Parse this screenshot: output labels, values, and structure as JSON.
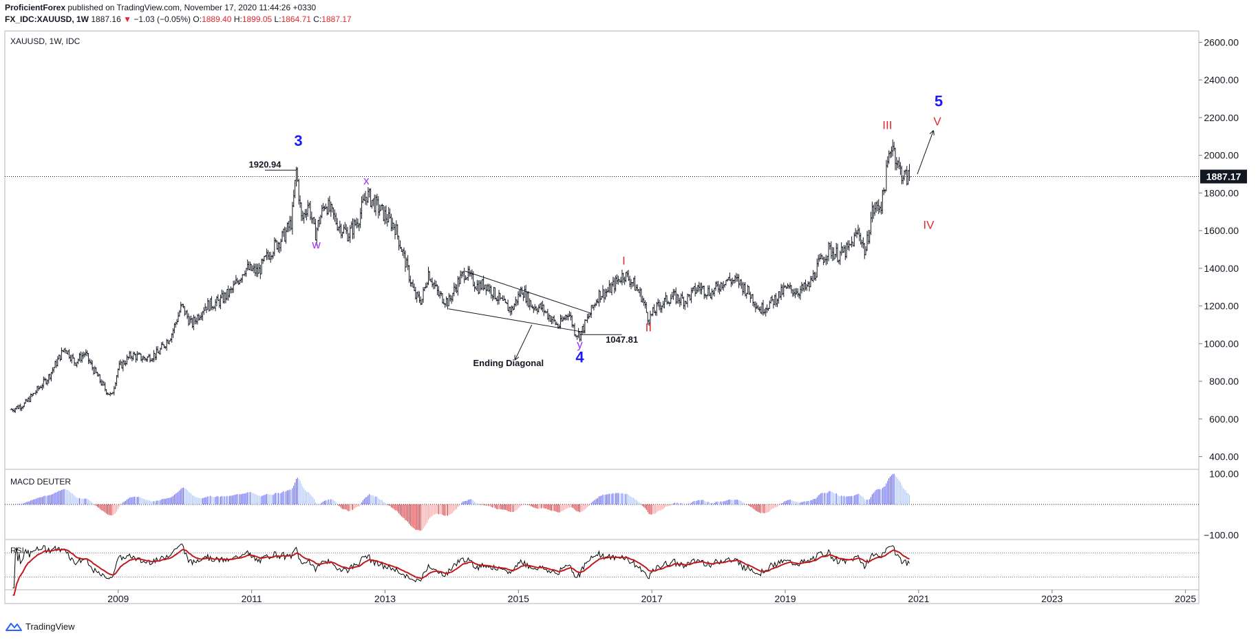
{
  "header": {
    "publisher": "ProficientForex",
    "published_text": "published on TradingView.com, November 17, 2020 11:44:26 +0330",
    "symbol": "FX_IDC:XAUUSD, 1W",
    "last_price": "1887.16",
    "change": "−1.03 (−0.05%)",
    "o_label": "O:",
    "o_value": "1889.40",
    "h_label": "H:",
    "h_value": "1899.05",
    "l_label": "L:",
    "l_value": "1864.71",
    "c_label": "C:",
    "c_value": "1887.17"
  },
  "footer": {
    "logo_icon": "tradingview-logo-icon",
    "brand": "TradingView"
  },
  "colors": {
    "wave_blue": "#1a1aff",
    "wave_red": "#e0282e",
    "wave_purple": "#9b30ff",
    "macd_pos": "#5b5bff",
    "macd_pos_light": "#a8c2ff",
    "macd_neg": "#e0282e",
    "macd_neg_light": "#ff9a9a",
    "rsi_line": "#000000",
    "rsi_ma": "#c0181e"
  },
  "chart_data": {
    "type": "line",
    "style": "ohlc-bars-weekly",
    "main_panel": {
      "label": "XAUUSD, 1W, IDC",
      "y_ticks": [
        "2600.00",
        "2400.00",
        "2200.00",
        "2000.00",
        "1800.00",
        "1600.00",
        "1400.00",
        "1200.00",
        "1000.00",
        "800.00",
        "600.00",
        "400.00"
      ],
      "ylim": [
        340,
        2660
      ],
      "current_price_label": "1887.17",
      "current_price": 1887.17,
      "price_path": [
        [
          2007.4,
          650
        ],
        [
          2007.6,
          680
        ],
        [
          2007.8,
          760
        ],
        [
          2007.95,
          820
        ],
        [
          2008.2,
          980
        ],
        [
          2008.35,
          900
        ],
        [
          2008.5,
          950
        ],
        [
          2008.6,
          880
        ],
        [
          2008.8,
          760
        ],
        [
          2008.9,
          720
        ],
        [
          2009.0,
          870
        ],
        [
          2009.2,
          940
        ],
        [
          2009.4,
          920
        ],
        [
          2009.6,
          950
        ],
        [
          2009.8,
          1050
        ],
        [
          2009.95,
          1200
        ],
        [
          2010.1,
          1100
        ],
        [
          2010.3,
          1200
        ],
        [
          2010.5,
          1220
        ],
        [
          2010.7,
          1280
        ],
        [
          2010.9,
          1400
        ],
        [
          2011.1,
          1380
        ],
        [
          2011.3,
          1500
        ],
        [
          2011.5,
          1580
        ],
        [
          2011.6,
          1650
        ],
        [
          2011.67,
          1920.94
        ],
        [
          2011.75,
          1650
        ],
        [
          2011.85,
          1750
        ],
        [
          2011.95,
          1580
        ],
        [
          2012.1,
          1750
        ],
        [
          2012.3,
          1630
        ],
        [
          2012.45,
          1580
        ],
        [
          2012.6,
          1660
        ],
        [
          2012.72,
          1795
        ],
        [
          2012.85,
          1740
        ],
        [
          2013.0,
          1680
        ],
        [
          2013.15,
          1620
        ],
        [
          2013.3,
          1440
        ],
        [
          2013.45,
          1250
        ],
        [
          2013.55,
          1230
        ],
        [
          2013.65,
          1380
        ],
        [
          2013.8,
          1260
        ],
        [
          2013.95,
          1220
        ],
        [
          2014.1,
          1330
        ],
        [
          2014.2,
          1380
        ],
        [
          2014.4,
          1300
        ],
        [
          2014.5,
          1320
        ],
        [
          2014.65,
          1260
        ],
        [
          2014.8,
          1200
        ],
        [
          2014.9,
          1180
        ],
        [
          2015.05,
          1290
        ],
        [
          2015.2,
          1200
        ],
        [
          2015.35,
          1190
        ],
        [
          2015.5,
          1130
        ],
        [
          2015.6,
          1090
        ],
        [
          2015.75,
          1170
        ],
        [
          2015.85,
          1060
        ],
        [
          2015.92,
          1047.81
        ],
        [
          2016.05,
          1140
        ],
        [
          2016.2,
          1260
        ],
        [
          2016.35,
          1280
        ],
        [
          2016.5,
          1340
        ],
        [
          2016.58,
          1370
        ],
        [
          2016.7,
          1330
        ],
        [
          2016.85,
          1250
        ],
        [
          2016.95,
          1130
        ],
        [
          2017.1,
          1200
        ],
        [
          2017.3,
          1250
        ],
        [
          2017.5,
          1230
        ],
        [
          2017.7,
          1300
        ],
        [
          2017.9,
          1270
        ],
        [
          2018.1,
          1340
        ],
        [
          2018.3,
          1330
        ],
        [
          2018.5,
          1250
        ],
        [
          2018.62,
          1180
        ],
        [
          2018.8,
          1220
        ],
        [
          2019.0,
          1290
        ],
        [
          2019.2,
          1280
        ],
        [
          2019.35,
          1300
        ],
        [
          2019.5,
          1420
        ],
        [
          2019.65,
          1500
        ],
        [
          2019.8,
          1470
        ],
        [
          2019.95,
          1500
        ],
        [
          2020.1,
          1600
        ],
        [
          2020.2,
          1480
        ],
        [
          2020.3,
          1700
        ],
        [
          2020.45,
          1750
        ],
        [
          2020.55,
          1980
        ],
        [
          2020.6,
          2075
        ],
        [
          2020.7,
          1930
        ],
        [
          2020.8,
          1880
        ],
        [
          2020.87,
          1887.17
        ]
      ],
      "annotations": [
        {
          "text": "3",
          "x": 2011.7,
          "y": 2050,
          "color": "blue",
          "size": "large"
        },
        {
          "text": "1920.94",
          "x": 2011.2,
          "y": 1935,
          "color": "black",
          "size": "small"
        },
        {
          "text": "x",
          "x": 2012.72,
          "y": 1845,
          "color": "purple",
          "size": "medium"
        },
        {
          "text": "w",
          "x": 2011.97,
          "y": 1505,
          "color": "purple",
          "size": "medium"
        },
        {
          "text": "I",
          "x": 2016.58,
          "y": 1420,
          "color": "red",
          "size": "medium"
        },
        {
          "text": "II",
          "x": 2016.95,
          "y": 1065,
          "color": "red",
          "size": "medium"
        },
        {
          "text": "1047.81",
          "x": 2016.55,
          "y": 1005,
          "color": "black",
          "size": "small"
        },
        {
          "text": "y",
          "x": 2015.92,
          "y": 975,
          "color": "purple",
          "size": "medium"
        },
        {
          "text": "4",
          "x": 2015.92,
          "y": 900,
          "color": "blue",
          "size": "large"
        },
        {
          "text": "Ending Diagonal",
          "x": 2014.85,
          "y": 880,
          "color": "black",
          "size": "small"
        },
        {
          "text": "III",
          "x": 2020.53,
          "y": 2140,
          "color": "red",
          "size": "medium"
        },
        {
          "text": "IV",
          "x": 2021.15,
          "y": 1610,
          "color": "red",
          "size": "medium"
        },
        {
          "text": "5",
          "x": 2021.3,
          "y": 2260,
          "color": "blue",
          "size": "large"
        },
        {
          "text": "V",
          "x": 2021.28,
          "y": 2160,
          "color": "red",
          "size": "medium"
        }
      ],
      "trendlines": [
        {
          "x1": 2014.2,
          "y1": 1385,
          "x2": 2016.1,
          "y2": 1160
        },
        {
          "x1": 2013.95,
          "y1": 1185,
          "x2": 2016.0,
          "y2": 1060
        },
        {
          "x1": 2015.92,
          "y1": 1047.81,
          "x2": 2016.55,
          "y2": 1047.81
        },
        {
          "x1": 2011.2,
          "y1": 1920.94,
          "x2": 2011.67,
          "y2": 1920.94
        }
      ],
      "arrows": [
        {
          "x1": 2015.2,
          "y1": 1100,
          "x2": 2014.95,
          "y2": 915
        },
        {
          "x1": 2020.98,
          "y1": 1900,
          "x2": 2021.22,
          "y2": 2130
        }
      ]
    },
    "macd_panel": {
      "label": "MACD DEUTER",
      "y_ticks": [
        "100.00",
        "−100.00"
      ],
      "ylim": [
        -110,
        110
      ],
      "zero_line": 0
    },
    "rsi_panel": {
      "label": "RSI",
      "levels": [
        70,
        30
      ],
      "ylim": [
        10,
        90
      ]
    },
    "x_axis": {
      "ticks": [
        "2009",
        "2011",
        "2013",
        "2015",
        "2017",
        "2019",
        "2021",
        "2023",
        "2025"
      ],
      "tick_years": [
        2009,
        2011,
        2013,
        2015,
        2017,
        2019,
        2021,
        2023,
        2025
      ],
      "xlim": [
        2007.3,
        2025.2
      ]
    }
  }
}
